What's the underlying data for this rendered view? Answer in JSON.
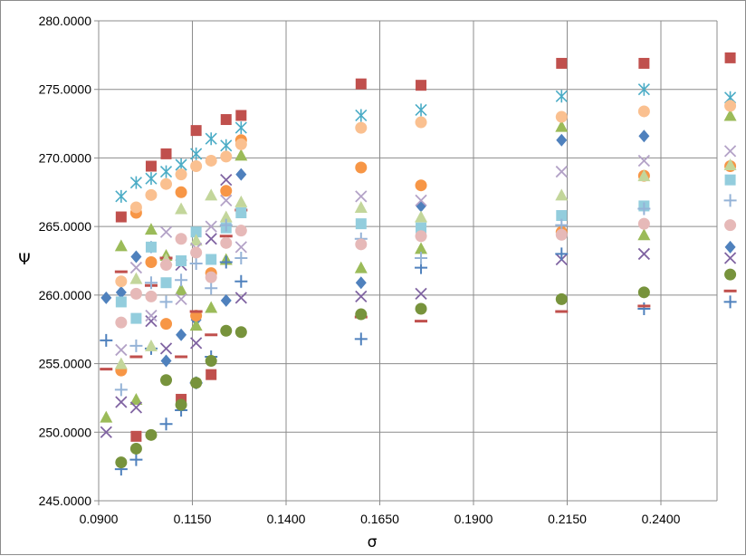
{
  "chart_data": {
    "type": "scatter",
    "title": "",
    "xlabel": "σ",
    "ylabel": "Ψ",
    "xlim": [
      0.09,
      0.265
    ],
    "ylim": [
      245,
      280
    ],
    "grid": true,
    "legend": "none",
    "x_ticks": [
      "0.0900",
      "0.1150",
      "0.1400",
      "0.1650",
      "0.1900",
      "0.2150",
      "0.2400"
    ],
    "y_ticks": [
      "245.0000",
      "250.0000",
      "255.0000",
      "260.0000",
      "265.0000",
      "270.0000",
      "275.0000",
      "280.0000"
    ],
    "series": [
      {
        "marker": "diamond",
        "color": "#4f81bd",
        "x": [
          0.092,
          0.096,
          0.1,
          0.104,
          0.108,
          0.112,
          0.116,
          0.12,
          0.124,
          0.128,
          0.16,
          0.176,
          0.2135,
          0.2355,
          0.2585
        ],
        "y": [
          259.8,
          260.2,
          262.8,
          263.5,
          255.2,
          257.1,
          258.2,
          261.5,
          259.6,
          268.8,
          260.9,
          266.5,
          271.3,
          271.6,
          263.5
        ]
      },
      {
        "marker": "square",
        "color": "#c0504d",
        "x": [
          0.096,
          0.1,
          0.104,
          0.108,
          0.112,
          0.116,
          0.12,
          0.124,
          0.128,
          0.16,
          0.176,
          0.2135,
          0.2355,
          0.2585
        ],
        "y": [
          265.7,
          249.7,
          269.4,
          270.3,
          252.4,
          272.0,
          254.2,
          272.8,
          273.1,
          275.4,
          275.3,
          276.9,
          276.9,
          277.3
        ]
      },
      {
        "marker": "triangle",
        "color": "#9bbb59",
        "x": [
          0.092,
          0.096,
          0.1,
          0.104,
          0.108,
          0.112,
          0.116,
          0.12,
          0.124,
          0.128,
          0.16,
          0.176,
          0.2135,
          0.2355,
          0.2585
        ],
        "y": [
          251.1,
          263.6,
          252.4,
          264.8,
          262.9,
          260.4,
          257.8,
          259.1,
          262.6,
          270.2,
          262.0,
          263.4,
          272.3,
          264.4,
          273.1
        ]
      },
      {
        "marker": "x",
        "color": "#8064a2",
        "x": [
          0.092,
          0.096,
          0.1,
          0.104,
          0.108,
          0.112,
          0.116,
          0.12,
          0.124,
          0.128,
          0.16,
          0.176,
          0.2135,
          0.2355,
          0.2585
        ],
        "y": [
          250.0,
          252.2,
          251.8,
          258.1,
          256.1,
          262.2,
          256.5,
          264.1,
          268.4,
          259.8,
          259.9,
          260.1,
          262.6,
          263.0,
          262.7
        ]
      },
      {
        "marker": "asterisk",
        "color": "#4bacc6",
        "x": [
          0.096,
          0.1,
          0.104,
          0.108,
          0.112,
          0.116,
          0.12,
          0.124,
          0.128,
          0.16,
          0.176,
          0.2135,
          0.2355,
          0.2585
        ],
        "y": [
          267.2,
          268.2,
          268.5,
          269.0,
          269.5,
          270.3,
          271.4,
          270.9,
          272.2,
          273.1,
          273.5,
          274.5,
          275.0,
          274.4
        ]
      },
      {
        "marker": "circle",
        "color": "#f79646",
        "x": [
          0.096,
          0.1,
          0.104,
          0.108,
          0.112,
          0.116,
          0.12,
          0.124,
          0.128,
          0.16,
          0.176,
          0.2135,
          0.2355,
          0.2585
        ],
        "y": [
          254.5,
          266.0,
          262.4,
          257.9,
          267.5,
          258.5,
          261.6,
          267.6,
          271.3,
          269.3,
          268.0,
          264.6,
          268.7,
          269.4
        ]
      },
      {
        "marker": "plus",
        "color": "#4f81bd",
        "x": [
          0.092,
          0.096,
          0.1,
          0.104,
          0.108,
          0.112,
          0.116,
          0.12,
          0.124,
          0.128,
          0.16,
          0.176,
          0.2135,
          0.2355,
          0.2585
        ],
        "y": [
          256.7,
          247.3,
          248.0,
          256.1,
          250.6,
          251.6,
          253.6,
          255.5,
          262.4,
          261.0,
          256.8,
          262.0,
          263.0,
          259.0,
          259.5
        ]
      },
      {
        "marker": "dash",
        "color": "#c0504d",
        "x": [
          0.092,
          0.096,
          0.1,
          0.104,
          0.108,
          0.112,
          0.116,
          0.12,
          0.124,
          0.128,
          0.16,
          0.176,
          0.2135,
          0.2355,
          0.2585
        ],
        "y": [
          254.6,
          261.7,
          255.5,
          260.7,
          262.7,
          255.5,
          258.8,
          257.1,
          264.3,
          266.2,
          258.4,
          258.1,
          258.8,
          259.2,
          260.3
        ]
      },
      {
        "marker": "circle",
        "color": "#77933c",
        "x": [
          0.096,
          0.1,
          0.104,
          0.108,
          0.112,
          0.116,
          0.12,
          0.124,
          0.128,
          0.16,
          0.176,
          0.2135,
          0.2355,
          0.2585
        ],
        "y": [
          247.8,
          248.8,
          249.8,
          253.8,
          252.0,
          253.6,
          255.2,
          257.4,
          257.3,
          258.6,
          259.0,
          259.7,
          260.2,
          261.5
        ]
      },
      {
        "marker": "square",
        "color": "#93cddd",
        "x": [
          0.096,
          0.1,
          0.104,
          0.108,
          0.112,
          0.116,
          0.12,
          0.124,
          0.128,
          0.16,
          0.176,
          0.2135,
          0.2355,
          0.2585
        ],
        "y": [
          259.5,
          258.3,
          263.5,
          260.9,
          262.5,
          264.6,
          262.6,
          264.9,
          266.0,
          265.2,
          264.9,
          265.8,
          266.5,
          268.4
        ]
      },
      {
        "marker": "circle",
        "color": "#fac090",
        "x": [
          0.096,
          0.1,
          0.104,
          0.108,
          0.112,
          0.116,
          0.12,
          0.124,
          0.128,
          0.16,
          0.176,
          0.2135,
          0.2355,
          0.2585
        ],
        "y": [
          261.0,
          266.4,
          267.3,
          268.1,
          268.8,
          269.4,
          269.8,
          270.1,
          271.0,
          272.2,
          272.6,
          273.0,
          273.4,
          273.8
        ]
      },
      {
        "marker": "triangle",
        "color": "#c3d69b",
        "x": [
          0.096,
          0.1,
          0.104,
          0.108,
          0.112,
          0.116,
          0.12,
          0.124,
          0.128,
          0.16,
          0.176,
          0.2135,
          0.2355,
          0.2585
        ],
        "y": [
          255.0,
          261.2,
          256.3,
          262.6,
          266.3,
          264.0,
          267.3,
          265.7,
          266.8,
          266.4,
          265.7,
          267.3,
          268.7,
          269.5
        ]
      },
      {
        "marker": "x",
        "color": "#b3a2c7",
        "x": [
          0.096,
          0.1,
          0.104,
          0.108,
          0.112,
          0.116,
          0.12,
          0.124,
          0.128,
          0.16,
          0.176,
          0.2135,
          0.2355,
          0.2585
        ],
        "y": [
          256.0,
          262.0,
          258.5,
          264.6,
          259.7,
          263.4,
          265.0,
          266.9,
          263.5,
          267.2,
          266.9,
          269.0,
          269.8,
          270.5
        ]
      },
      {
        "marker": "plus",
        "color": "#95b3d7",
        "x": [
          0.096,
          0.1,
          0.104,
          0.108,
          0.112,
          0.116,
          0.12,
          0.124,
          0.128,
          0.16,
          0.176,
          0.2135,
          0.2355,
          0.2585
        ],
        "y": [
          253.1,
          256.3,
          260.9,
          259.5,
          261.1,
          262.3,
          260.5,
          265.1,
          262.7,
          264.1,
          262.7,
          265.1,
          266.3,
          266.9
        ]
      },
      {
        "marker": "circle",
        "color": "#e6b9b8",
        "x": [
          0.096,
          0.1,
          0.104,
          0.108,
          0.112,
          0.116,
          0.12,
          0.124,
          0.128,
          0.16,
          0.176,
          0.2135,
          0.2355,
          0.2585
        ],
        "y": [
          258.0,
          260.1,
          259.9,
          262.2,
          264.1,
          263.1,
          261.3,
          263.8,
          264.7,
          263.7,
          264.3,
          264.4,
          265.2,
          265.1
        ]
      }
    ]
  }
}
